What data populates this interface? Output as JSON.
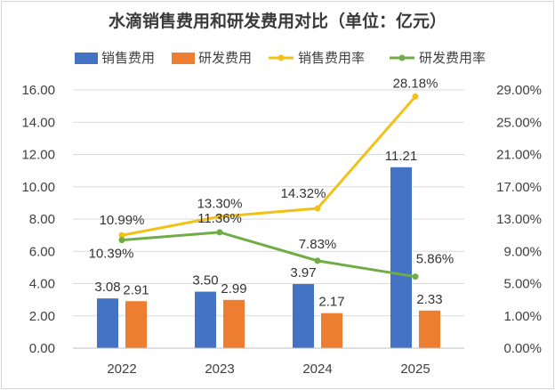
{
  "chart_data": {
    "type": "bar",
    "title": "水滴销售费用和研发费用对比（单位：亿元）",
    "categories": [
      "2022",
      "2023",
      "2024",
      "2025"
    ],
    "series": [
      {
        "name": "销售费用",
        "kind": "bar",
        "axis": "left",
        "color": "#4472C4",
        "values": [
          3.08,
          3.5,
          3.97,
          11.21
        ],
        "labels": [
          "3.08",
          "3.50",
          "3.97",
          "11.21"
        ]
      },
      {
        "name": "研发费用",
        "kind": "bar",
        "axis": "left",
        "color": "#ED7D31",
        "values": [
          2.91,
          2.99,
          2.17,
          2.33
        ],
        "labels": [
          "2.91",
          "2.99",
          "2.17",
          "2.33"
        ]
      },
      {
        "name": "销售费用率",
        "kind": "line",
        "axis": "right",
        "color": "#F2C117",
        "values": [
          10.99,
          13.3,
          14.32,
          28.18
        ],
        "labels": [
          "10.99%",
          "13.30%",
          "14.32%",
          "28.18%"
        ]
      },
      {
        "name": "研发费用率",
        "kind": "line",
        "axis": "right",
        "color": "#70AD47",
        "values": [
          10.39,
          11.36,
          7.83,
          5.86
        ],
        "labels": [
          "10.39%",
          "11.36%",
          "7.83%",
          "5.86%"
        ]
      }
    ],
    "y_left": {
      "ticks": [
        "0.00",
        "2.00",
        "4.00",
        "6.00",
        "8.00",
        "10.00",
        "12.00",
        "14.00",
        "16.00"
      ],
      "ylim": [
        0,
        16
      ]
    },
    "y_right": {
      "ticks": [
        "0.00%",
        "1.00%",
        "5.00%",
        "9.00%",
        "13.00%",
        "17.00%",
        "21.00%",
        "25.00%",
        "29.00%"
      ],
      "ylim": [
        -3,
        29
      ]
    },
    "legend_position": "top",
    "grid": true
  }
}
